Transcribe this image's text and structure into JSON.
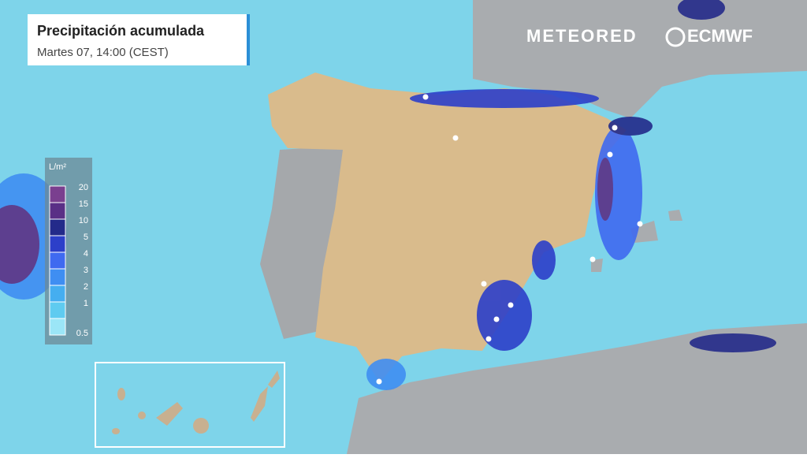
{
  "header": {
    "title": "Precipitación acumulada",
    "subtitle": "Martes 07, 14:00 (CEST)"
  },
  "logos": {
    "left": "METEORED",
    "right": "ECMWF"
  },
  "legend": {
    "unit": "L/m²",
    "items": [
      {
        "label": "20",
        "color": "#7a3f8f"
      },
      {
        "label": "15",
        "color": "#5a2f86"
      },
      {
        "label": "10",
        "color": "#232a8a"
      },
      {
        "label": "5",
        "color": "#2c3fc9"
      },
      {
        "label": "4",
        "color": "#3f6af0"
      },
      {
        "label": "3",
        "color": "#3f8ef2"
      },
      {
        "label": "2",
        "color": "#45aef0"
      },
      {
        "label": "1",
        "color": "#5fcbf0"
      },
      {
        "label": "0.5",
        "color": "#9be6f7"
      }
    ]
  }
}
